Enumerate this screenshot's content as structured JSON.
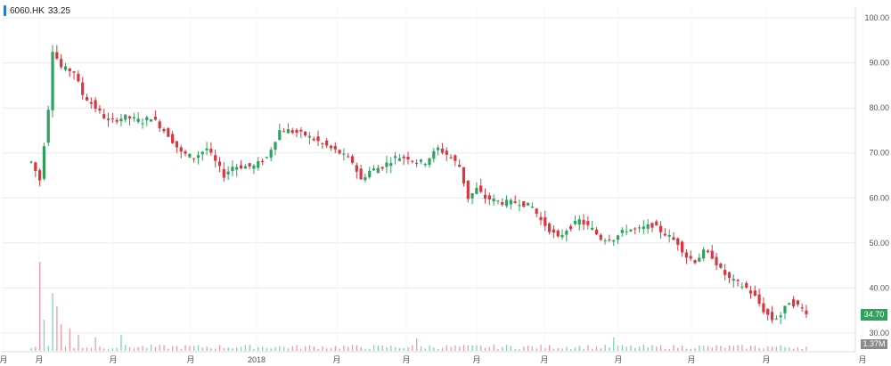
{
  "ticker": {
    "symbol": "6060.HK",
    "price": "33.25"
  },
  "badges": {
    "last_price": "34.70",
    "last_volume": "1.37M"
  },
  "colors": {
    "up": "#2ba35c",
    "down": "#d9363e",
    "grid": "#ececec",
    "axis_text": "#555555",
    "accent": "#1e7ad6"
  },
  "chart_data": {
    "type": "candlestick",
    "ylim": [
      28,
      102
    ],
    "y_ticks": [
      "30.00",
      "40.00",
      "50.00",
      "60.00",
      "70.00",
      "80.00",
      "90.00",
      "100.00"
    ],
    "x_labels": [
      "月",
      "月",
      "月",
      "月",
      "2018",
      "月",
      "月",
      "月",
      "月",
      "月",
      "月",
      "月",
      "月"
    ],
    "grid": true,
    "key_prices": [
      {
        "t": 0,
        "price": 68
      },
      {
        "t": 2,
        "price": 64
      },
      {
        "t": 4,
        "price": 80
      },
      {
        "t": 5,
        "price": 93
      },
      {
        "t": 7,
        "price": 89
      },
      {
        "t": 10,
        "price": 88
      },
      {
        "t": 12,
        "price": 83
      },
      {
        "t": 15,
        "price": 80
      },
      {
        "t": 18,
        "price": 77
      },
      {
        "t": 22,
        "price": 78
      },
      {
        "t": 26,
        "price": 77
      },
      {
        "t": 28,
        "price": 78
      },
      {
        "t": 32,
        "price": 74
      },
      {
        "t": 35,
        "price": 70
      },
      {
        "t": 38,
        "price": 69
      },
      {
        "t": 41,
        "price": 71
      },
      {
        "t": 43,
        "price": 68
      },
      {
        "t": 45,
        "price": 65
      },
      {
        "t": 47,
        "price": 67
      },
      {
        "t": 52,
        "price": 67
      },
      {
        "t": 55,
        "price": 69
      },
      {
        "t": 58,
        "price": 75
      },
      {
        "t": 60,
        "price": 75
      },
      {
        "t": 64,
        "price": 74
      },
      {
        "t": 68,
        "price": 72
      },
      {
        "t": 72,
        "price": 70
      },
      {
        "t": 75,
        "price": 68
      },
      {
        "t": 77,
        "price": 64
      },
      {
        "t": 79,
        "price": 66
      },
      {
        "t": 82,
        "price": 67
      },
      {
        "t": 85,
        "price": 69
      },
      {
        "t": 88,
        "price": 69
      },
      {
        "t": 90,
        "price": 68
      },
      {
        "t": 92,
        "price": 68
      },
      {
        "t": 95,
        "price": 71
      },
      {
        "t": 98,
        "price": 69
      },
      {
        "t": 100,
        "price": 67
      },
      {
        "t": 102,
        "price": 60
      },
      {
        "t": 104,
        "price": 62
      },
      {
        "t": 106,
        "price": 60
      },
      {
        "t": 110,
        "price": 59
      },
      {
        "t": 114,
        "price": 59
      },
      {
        "t": 117,
        "price": 58
      },
      {
        "t": 119,
        "price": 55
      },
      {
        "t": 121,
        "price": 53
      },
      {
        "t": 123,
        "price": 51
      },
      {
        "t": 125,
        "price": 53
      },
      {
        "t": 128,
        "price": 55
      },
      {
        "t": 131,
        "price": 53
      },
      {
        "t": 133,
        "price": 51
      },
      {
        "t": 136,
        "price": 51
      },
      {
        "t": 139,
        "price": 53
      },
      {
        "t": 142,
        "price": 53
      },
      {
        "t": 145,
        "price": 54
      },
      {
        "t": 148,
        "price": 52
      },
      {
        "t": 151,
        "price": 50
      },
      {
        "t": 153,
        "price": 47
      },
      {
        "t": 155,
        "price": 46
      },
      {
        "t": 157,
        "price": 48
      },
      {
        "t": 159,
        "price": 47
      },
      {
        "t": 161,
        "price": 44
      },
      {
        "t": 163,
        "price": 42
      },
      {
        "t": 165,
        "price": 41
      },
      {
        "t": 167,
        "price": 40
      },
      {
        "t": 169,
        "price": 38
      },
      {
        "t": 171,
        "price": 35
      },
      {
        "t": 173,
        "price": 33
      },
      {
        "t": 175,
        "price": 34
      },
      {
        "t": 177,
        "price": 37
      },
      {
        "t": 179,
        "price": 36
      },
      {
        "t": 181,
        "price": 34.7
      }
    ],
    "volume_spikes": [
      {
        "t": 2,
        "height_pct": 100
      },
      {
        "t": 3,
        "height_pct": 35
      },
      {
        "t": 5,
        "height_pct": 65
      },
      {
        "t": 6,
        "height_pct": 50
      },
      {
        "t": 7,
        "height_pct": 30
      },
      {
        "t": 9,
        "height_pct": 25
      },
      {
        "t": 11,
        "height_pct": 18
      },
      {
        "t": 15,
        "height_pct": 15
      },
      {
        "t": 21,
        "height_pct": 18
      },
      {
        "t": 90,
        "height_pct": 14
      },
      {
        "t": 136,
        "height_pct": 15
      }
    ]
  }
}
